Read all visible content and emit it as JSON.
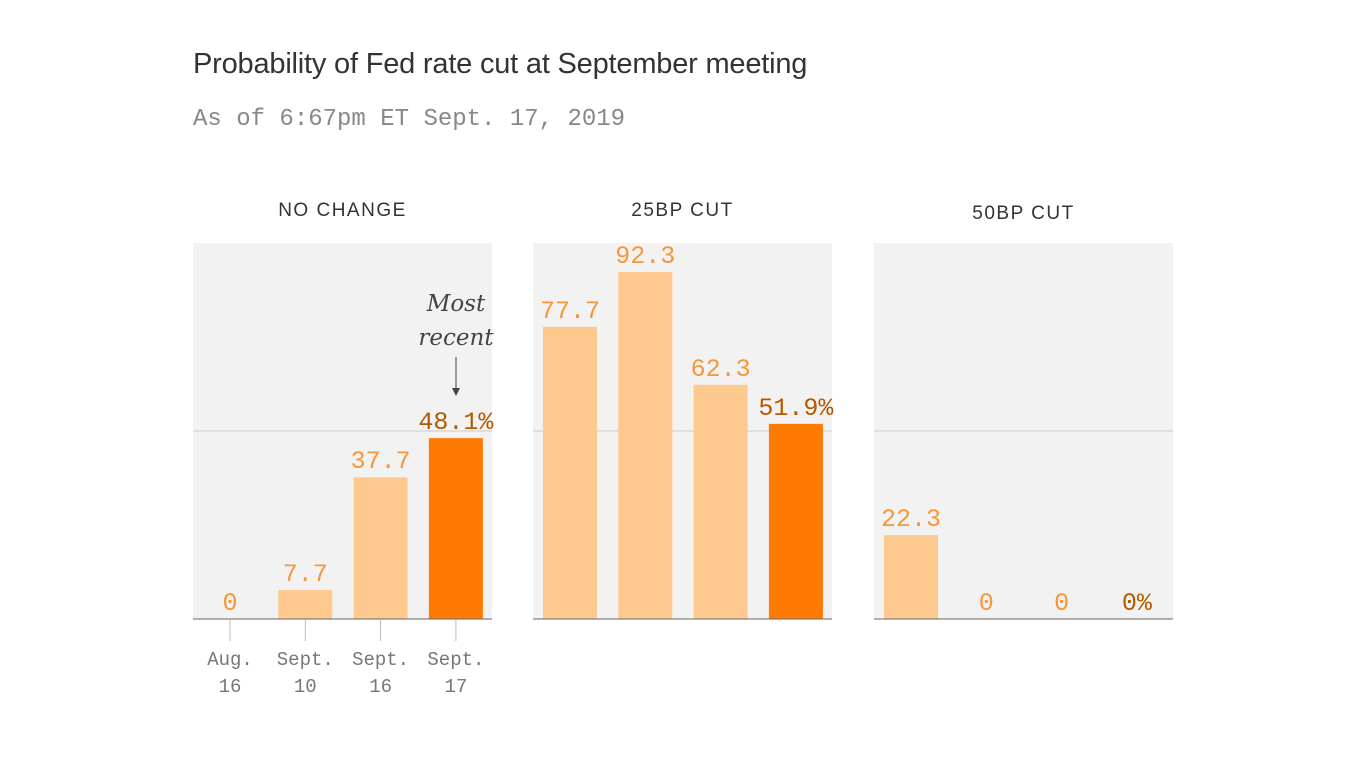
{
  "title": "Probability of Fed rate cut at September meeting",
  "subtitle": "As of 6:67pm ET Sept. 17, 2019",
  "annotation": {
    "line1": "Most",
    "line2": "recent"
  },
  "colors": {
    "panel_bg": "#f2f2f2",
    "bar_light": "#fdc98f",
    "bar_recent": "#ff7a00",
    "label_light": "#f7963a",
    "label_recent": "#b35a00"
  },
  "chart_data": {
    "type": "bar",
    "ylim": [
      0,
      100
    ],
    "gridlines": [
      50
    ],
    "categories": [
      [
        "Aug.",
        "16"
      ],
      [
        "Sept.",
        "10"
      ],
      [
        "Sept.",
        "16"
      ],
      [
        "Sept.",
        "17"
      ]
    ],
    "panels": [
      {
        "title": "NO CHANGE",
        "values": [
          0,
          7.7,
          37.7,
          48.1
        ],
        "labels": [
          "0",
          "7.7",
          "37.7",
          "48.1%"
        ]
      },
      {
        "title": "25BP CUT",
        "values": [
          77.7,
          92.3,
          62.3,
          51.9
        ],
        "labels": [
          "77.7",
          "92.3",
          "62.3",
          "51.9%"
        ]
      },
      {
        "title": "50BP CUT",
        "values": [
          22.3,
          0,
          0,
          0
        ],
        "labels": [
          "22.3",
          "0",
          "0",
          "0%"
        ]
      }
    ]
  }
}
